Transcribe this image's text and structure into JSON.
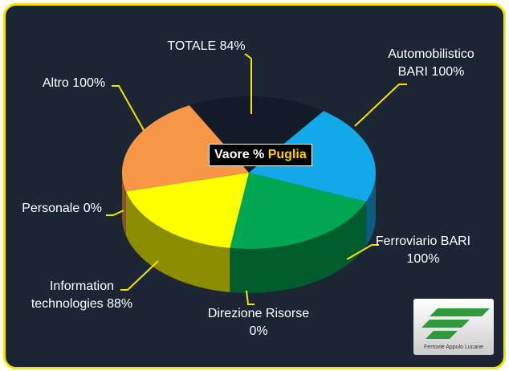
{
  "chart_data": {
    "type": "pie",
    "categories": [
      "TOTALE",
      "Automobilistico BARI",
      "Ferroviario BARI",
      "Direzione Risorse",
      "Information technologies",
      "Personale",
      "Altro"
    ],
    "values": [
      84,
      100,
      100,
      0,
      88,
      0,
      100
    ],
    "value_labels": [
      "84%",
      "100%",
      "100%",
      "0%",
      "88%",
      "0%",
      "100%"
    ],
    "colors": [
      "#121b27",
      "#13a9e9",
      "#00a651",
      "#7f7f7f",
      "#ffff00",
      "#c0c0c0",
      "#f79646"
    ],
    "center_label": {
      "text": "Vaore %",
      "highlight": "Puglia"
    }
  },
  "logo": {
    "text": "Ferrovie Appulo Lucane"
  }
}
